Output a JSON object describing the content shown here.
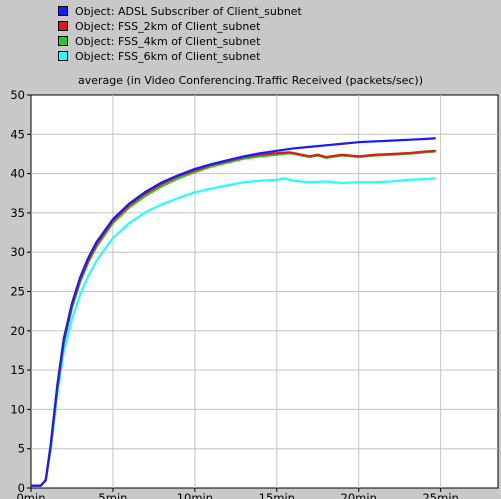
{
  "legend": [
    {
      "label": "Object: ADSL Subscriber of Client_subnet",
      "color": "#1a1aff"
    },
    {
      "label": "Object: FSS_2km of Client_subnet",
      "color": "#e01818"
    },
    {
      "label": "Object: FSS_4km of Client_subnet",
      "color": "#22cc22"
    },
    {
      "label": "Object: FSS_6km of Client_subnet",
      "color": "#22ffff"
    }
  ],
  "colors": {
    "background": "#c8c8c8",
    "plot_background": "#ffffff",
    "grid": "#c4c4c4"
  },
  "chart_data": {
    "type": "line",
    "title": "average (in Video Conferencing.Traffic Received (packets/sec))",
    "xlabel": "",
    "ylabel": "",
    "xlim": [
      0,
      28.5
    ],
    "ylim": [
      0,
      50
    ],
    "x_ticks": [
      {
        "value": 0,
        "label": "0min"
      },
      {
        "value": 5,
        "label": "5min"
      },
      {
        "value": 10,
        "label": "10min"
      },
      {
        "value": 15,
        "label": "15min"
      },
      {
        "value": 20,
        "label": "20min"
      },
      {
        "value": 25,
        "label": "25min"
      }
    ],
    "y_ticks": [
      0,
      5,
      10,
      15,
      20,
      25,
      30,
      35,
      40,
      45,
      50
    ],
    "grid": true,
    "legend_position": "top",
    "series": [
      {
        "name": "Object: ADSL Subscriber of Client_subnet",
        "color": "#1a1aff",
        "points": [
          [
            0,
            0.3
          ],
          [
            0.6,
            0.3
          ],
          [
            0.9,
            1
          ],
          [
            1.2,
            5.5
          ],
          [
            1.6,
            13
          ],
          [
            2,
            19
          ],
          [
            2.5,
            23.5
          ],
          [
            3,
            26.8
          ],
          [
            3.5,
            29.3
          ],
          [
            4,
            31.3
          ],
          [
            5,
            34.2
          ],
          [
            6,
            36.2
          ],
          [
            7,
            37.7
          ],
          [
            8,
            38.9
          ],
          [
            9,
            39.8
          ],
          [
            10,
            40.6
          ],
          [
            11,
            41.2
          ],
          [
            12,
            41.7
          ],
          [
            13,
            42.2
          ],
          [
            14,
            42.6
          ],
          [
            15,
            42.9
          ],
          [
            16,
            43.2
          ],
          [
            17,
            43.4
          ],
          [
            18,
            43.6
          ],
          [
            19,
            43.8
          ],
          [
            20,
            44
          ],
          [
            21,
            44.1
          ],
          [
            22,
            44.2
          ],
          [
            23,
            44.3
          ],
          [
            24,
            44.4
          ],
          [
            24.7,
            44.5
          ]
        ]
      },
      {
        "name": "Object: FSS_2km of Client_subnet",
        "color": "#e01818",
        "points": [
          [
            0,
            0.3
          ],
          [
            0.6,
            0.3
          ],
          [
            0.9,
            1
          ],
          [
            1.2,
            5.3
          ],
          [
            1.6,
            12.7
          ],
          [
            2,
            18.7
          ],
          [
            2.5,
            23.2
          ],
          [
            3,
            26.5
          ],
          [
            3.5,
            29
          ],
          [
            4,
            31
          ],
          [
            5,
            34
          ],
          [
            6,
            36
          ],
          [
            7,
            37.5
          ],
          [
            8,
            38.7
          ],
          [
            9,
            39.7
          ],
          [
            10,
            40.4
          ],
          [
            11,
            41.1
          ],
          [
            12,
            41.6
          ],
          [
            13,
            42.1
          ],
          [
            14,
            42.4
          ],
          [
            15,
            42.6
          ],
          [
            15.8,
            42.7
          ],
          [
            16.3,
            42.5
          ],
          [
            17,
            42.2
          ],
          [
            17.5,
            42.4
          ],
          [
            18,
            42.1
          ],
          [
            19,
            42.4
          ],
          [
            20,
            42.2
          ],
          [
            21,
            42.4
          ],
          [
            22,
            42.5
          ],
          [
            23,
            42.6
          ],
          [
            24,
            42.8
          ],
          [
            24.7,
            42.9
          ]
        ]
      },
      {
        "name": "Object: FSS_4km of Client_subnet",
        "color": "#22cc22",
        "points": [
          [
            0,
            0.3
          ],
          [
            0.6,
            0.3
          ],
          [
            0.9,
            1
          ],
          [
            1.2,
            5.1
          ],
          [
            1.6,
            12.4
          ],
          [
            2,
            18.4
          ],
          [
            2.5,
            22.9
          ],
          [
            3,
            26.2
          ],
          [
            3.5,
            28.7
          ],
          [
            4,
            30.7
          ],
          [
            5,
            33.7
          ],
          [
            6,
            35.7
          ],
          [
            7,
            37.2
          ],
          [
            8,
            38.4
          ],
          [
            9,
            39.4
          ],
          [
            10,
            40.2
          ],
          [
            11,
            40.9
          ],
          [
            12,
            41.4
          ],
          [
            13,
            41.9
          ],
          [
            14,
            42.2
          ],
          [
            15,
            42.4
          ],
          [
            15.8,
            42.6
          ],
          [
            16.3,
            42.4
          ],
          [
            17,
            42.1
          ],
          [
            17.5,
            42.3
          ],
          [
            18,
            42
          ],
          [
            19,
            42.3
          ],
          [
            20,
            42.1
          ],
          [
            21,
            42.3
          ],
          [
            22,
            42.4
          ],
          [
            23,
            42.5
          ],
          [
            24,
            42.7
          ],
          [
            24.7,
            42.8
          ]
        ]
      },
      {
        "name": "Object: FSS_6km of Client_subnet",
        "color": "#22ffff",
        "points": [
          [
            0,
            0.3
          ],
          [
            0.6,
            0.3
          ],
          [
            0.9,
            1
          ],
          [
            1.2,
            4.8
          ],
          [
            1.6,
            11.8
          ],
          [
            2,
            17.3
          ],
          [
            2.5,
            21.5
          ],
          [
            3,
            24.6
          ],
          [
            3.5,
            27
          ],
          [
            4,
            28.9
          ],
          [
            5,
            31.8
          ],
          [
            6,
            33.7
          ],
          [
            7,
            35.1
          ],
          [
            8,
            36.1
          ],
          [
            9,
            36.9
          ],
          [
            10,
            37.6
          ],
          [
            11,
            38.1
          ],
          [
            12,
            38.5
          ],
          [
            13,
            38.9
          ],
          [
            14,
            39.1
          ],
          [
            15,
            39.2
          ],
          [
            15.5,
            39.4
          ],
          [
            16,
            39.1
          ],
          [
            17,
            38.9
          ],
          [
            18,
            39
          ],
          [
            19,
            38.8
          ],
          [
            20,
            38.9
          ],
          [
            21,
            38.9
          ],
          [
            22,
            39
          ],
          [
            23,
            39.2
          ],
          [
            24,
            39.3
          ],
          [
            24.7,
            39.4
          ]
        ]
      }
    ]
  }
}
